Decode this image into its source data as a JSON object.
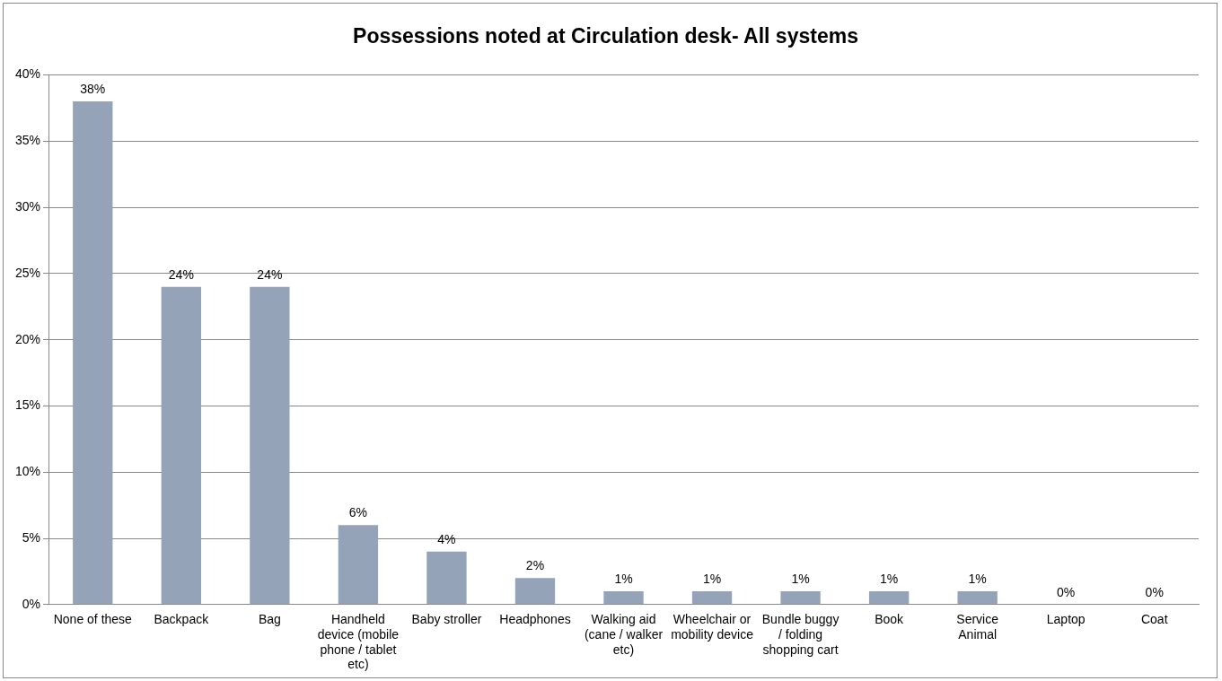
{
  "chart_data": {
    "type": "bar",
    "title": "Possessions noted at Circulation desk- All systems",
    "categories": [
      "None of these",
      "Backpack",
      "Bag",
      "Handheld device (mobile phone / tablet etc)",
      "Baby stroller",
      "Headphones",
      "Walking aid (cane / walker etc)",
      "Wheelchair or mobility device",
      "Bundle buggy / folding shopping cart",
      "Book",
      "Service Animal",
      "Laptop",
      "Coat"
    ],
    "values": [
      38,
      24,
      24,
      6,
      4,
      2,
      1,
      1,
      1,
      1,
      1,
      0,
      0
    ],
    "value_labels": [
      "38%",
      "24%",
      "24%",
      "6%",
      "4%",
      "2%",
      "1%",
      "1%",
      "1%",
      "1%",
      "1%",
      "0%",
      "0%"
    ],
    "color": "#95a3b8",
    "ylim": [
      0,
      40
    ],
    "yticks": [
      {
        "value": 0,
        "label": "0%"
      },
      {
        "value": 5,
        "label": "5%"
      },
      {
        "value": 10,
        "label": "10%"
      },
      {
        "value": 15,
        "label": "15%"
      },
      {
        "value": 20,
        "label": "20%"
      },
      {
        "value": 25,
        "label": "25%"
      },
      {
        "value": 30,
        "label": "30%"
      },
      {
        "value": 35,
        "label": "35%"
      },
      {
        "value": 40,
        "label": "40%"
      }
    ],
    "grid": "y",
    "legend": false
  }
}
